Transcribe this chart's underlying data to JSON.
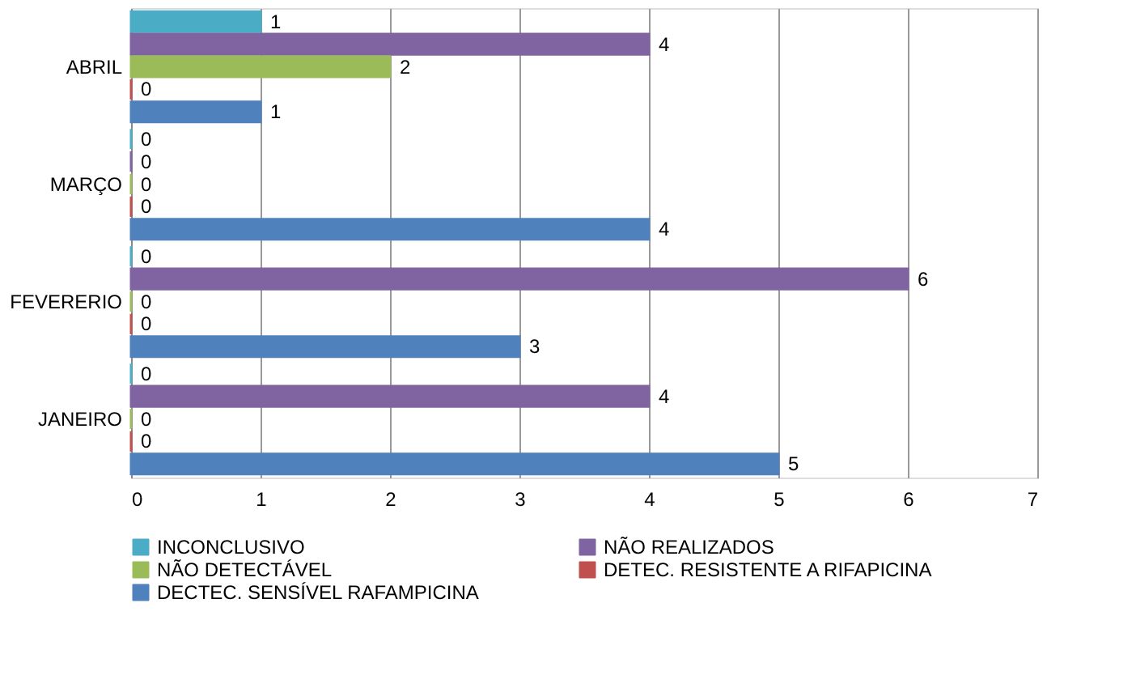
{
  "chart_data": {
    "type": "bar",
    "orientation": "horizontal",
    "categories": [
      "ABRIL",
      "MARÇO",
      "FEVERERIO",
      "JANEIRO"
    ],
    "series": [
      {
        "name": "INCONCLUSIVO",
        "color": "#4bacc6",
        "values": [
          1,
          0,
          0,
          0
        ]
      },
      {
        "name": "NÃO REALIZADOS",
        "color": "#8064a2",
        "values": [
          4,
          0,
          6,
          4
        ]
      },
      {
        "name": "NÃO DETECTÁVEL",
        "color": "#9bbb59",
        "values": [
          2,
          0,
          0,
          0
        ]
      },
      {
        "name": "DETEC. RESISTENTE A RIFAPICINA",
        "color": "#c0504d",
        "values": [
          0,
          0,
          0,
          0
        ]
      },
      {
        "name": "DECTEC. SENSÍVEL RAFAMPICINA",
        "color": "#4f81bd",
        "values": [
          1,
          4,
          3,
          5
        ]
      }
    ],
    "xlim": [
      0,
      7
    ],
    "xticks": [
      0,
      1,
      2,
      3,
      4,
      5,
      6,
      7
    ],
    "grid": "x",
    "legend": "bottom",
    "data_labels": true
  }
}
